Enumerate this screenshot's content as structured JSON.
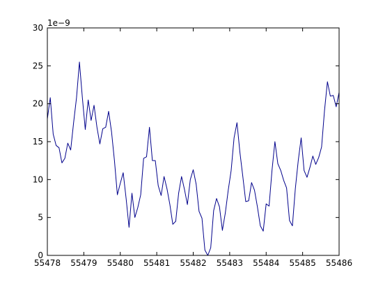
{
  "chart_data": {
    "type": "line",
    "offset_label": "1e−9",
    "xlim": [
      55478,
      55486
    ],
    "ylim": [
      0,
      30
    ],
    "x_ticks": [
      55478,
      55479,
      55480,
      55481,
      55482,
      55483,
      55484,
      55485,
      55486
    ],
    "x_tick_labels": [
      "55478",
      "55479",
      "55480",
      "55481",
      "55482",
      "55483",
      "55484",
      "55485",
      "55486"
    ],
    "y_ticks": [
      0,
      5,
      10,
      15,
      20,
      25,
      30
    ],
    "y_tick_labels": [
      "0",
      "5",
      "10",
      "15",
      "20",
      "25",
      "30"
    ],
    "grid": false,
    "line_color": "#00008b",
    "series": [
      {
        "x": [
          55478.0,
          55478.08,
          55478.16,
          55478.24,
          55478.32,
          55478.4,
          55478.48,
          55478.56,
          55478.64,
          55478.72,
          55478.8,
          55478.88,
          55478.96,
          55479.04,
          55479.12,
          55479.2,
          55479.28,
          55479.36,
          55479.44,
          55479.52,
          55479.6,
          55479.68,
          55479.76,
          55479.84,
          55479.92,
          55480.0,
          55480.08,
          55480.16,
          55480.24,
          55480.32,
          55480.4,
          55480.48,
          55480.56,
          55480.64,
          55480.72,
          55480.8,
          55480.88,
          55480.96,
          55481.04,
          55481.12,
          55481.2,
          55481.28,
          55481.36,
          55481.44,
          55481.52,
          55481.6,
          55481.68,
          55481.76,
          55481.84,
          55481.92,
          55482.0,
          55482.08,
          55482.16,
          55482.24,
          55482.32,
          55482.4,
          55482.48,
          55482.56,
          55482.64,
          55482.72,
          55482.8,
          55482.88,
          55482.96,
          55483.04,
          55483.12,
          55483.2,
          55483.28,
          55483.36,
          55483.44,
          55483.52,
          55483.6,
          55483.68,
          55483.76,
          55483.84,
          55483.92,
          55484.0,
          55484.08,
          55484.16,
          55484.24,
          55484.32,
          55484.4,
          55484.48,
          55484.56,
          55484.64,
          55484.72,
          55484.8,
          55484.88,
          55484.96,
          55485.04,
          55485.12,
          55485.2,
          55485.28,
          55485.36,
          55485.44,
          55485.52,
          55485.6,
          55485.68,
          55485.76,
          55485.84,
          55485.92,
          55486.0
        ],
        "values": [
          18.0,
          20.8,
          16.0,
          14.5,
          14.2,
          12.2,
          12.8,
          14.8,
          13.9,
          17.5,
          20.8,
          25.5,
          20.8,
          16.6,
          20.5,
          17.8,
          19.8,
          16.9,
          14.7,
          16.7,
          16.9,
          19.0,
          16.3,
          12.5,
          8.0,
          9.5,
          10.9,
          7.5,
          3.7,
          8.2,
          5.0,
          6.3,
          8.0,
          12.8,
          13.0,
          16.9,
          12.5,
          12.5,
          9.2,
          7.9,
          10.4,
          8.8,
          6.7,
          4.1,
          4.5,
          8.2,
          10.4,
          8.7,
          6.7,
          10.0,
          11.3,
          9.4,
          5.8,
          4.9,
          0.7,
          0.0,
          1.0,
          5.9,
          7.5,
          6.4,
          3.3,
          5.6,
          8.6,
          11.2,
          15.5,
          17.5,
          13.6,
          10.4,
          7.1,
          7.2,
          9.6,
          8.6,
          6.4,
          3.9,
          3.2,
          6.8,
          6.5,
          11.2,
          15.0,
          12.1,
          11.2,
          9.9,
          8.9,
          4.6,
          3.9,
          8.8,
          12.5,
          15.5,
          11.2,
          10.3,
          11.6,
          13.1,
          12.0,
          12.9,
          14.3,
          19.1,
          22.9,
          21.0,
          21.1,
          19.6,
          21.5
        ]
      }
    ]
  }
}
